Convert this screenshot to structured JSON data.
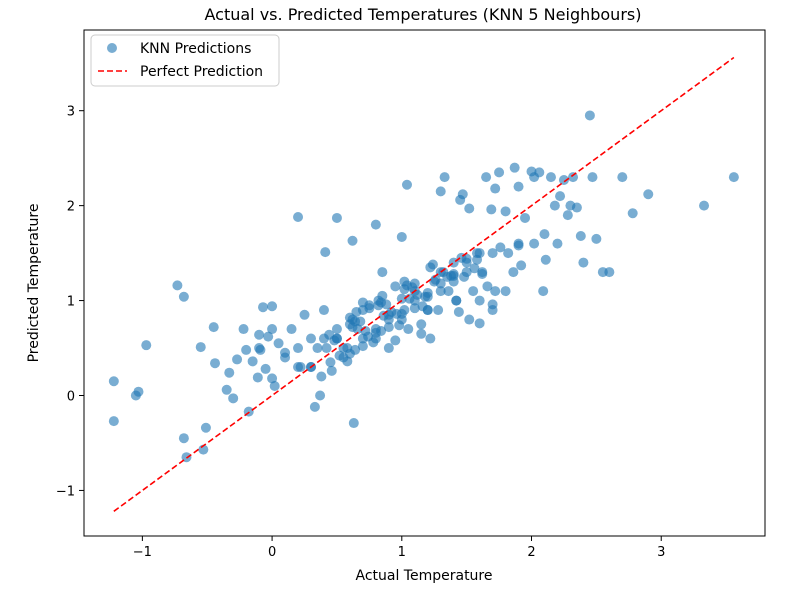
{
  "chart_data": {
    "type": "scatter",
    "title": "Actual vs. Predicted Temperatures (KNN 5 Neighbours)",
    "xlabel": "Actual Temperature",
    "ylabel": "Predicted Temperature",
    "xlim": [
      -1.45,
      3.8
    ],
    "ylim": [
      -1.48,
      3.85
    ],
    "x_ticks": [
      -1,
      0,
      1,
      2,
      3
    ],
    "y_ticks": [
      -1,
      0,
      1,
      2,
      3
    ],
    "x_tick_labels": [
      "−1",
      "0",
      "1",
      "2",
      "3"
    ],
    "y_tick_labels": [
      "−1",
      "0",
      "1",
      "2",
      "3"
    ],
    "grid": false,
    "legend_position": "top-left",
    "series": [
      {
        "name": "KNN Predictions",
        "kind": "scatter",
        "color": "#1f77b4",
        "x": [
          -1.22,
          -1.22,
          -1.05,
          -1.03,
          -0.97,
          -0.73,
          -0.68,
          -0.68,
          -0.66,
          -0.55,
          -0.53,
          -0.51,
          -0.45,
          -0.44,
          -0.35,
          -0.33,
          -0.3,
          -0.27,
          -0.22,
          -0.18,
          -0.15,
          -0.11,
          -0.1,
          -0.09,
          -0.07,
          -0.05,
          -0.03,
          0.0,
          0.0,
          0.2,
          0.33,
          0.37,
          0.41,
          0.5,
          0.62,
          0.63,
          0.8,
          0.85,
          1.0,
          1.04,
          1.3,
          1.33,
          1.45,
          1.47,
          1.52,
          1.58,
          1.6,
          1.65,
          1.69,
          1.72,
          1.75,
          1.8,
          1.87,
          1.9,
          1.92,
          1.95,
          2.0,
          2.02,
          2.06,
          2.09,
          2.11,
          2.15,
          2.18,
          2.2,
          2.22,
          2.25,
          2.28,
          2.3,
          2.32,
          2.35,
          2.38,
          2.4,
          2.45,
          2.47,
          2.5,
          2.55,
          2.6,
          2.7,
          2.78,
          2.9,
          3.33,
          3.56,
          0.15,
          0.35,
          0.55,
          0.7,
          0.9,
          1.1,
          1.25,
          1.4,
          1.55,
          1.7,
          0.05,
          0.25,
          0.45,
          0.6,
          0.75,
          0.95,
          1.15,
          1.35,
          0.1,
          0.3,
          0.5,
          0.65,
          0.85,
          1.05,
          1.2,
          1.5,
          -0.2,
          0.0,
          0.2,
          0.4,
          0.58,
          0.8,
          1.0,
          1.2,
          1.4,
          1.6,
          1.8,
          0.7,
          0.8,
          0.9,
          1.0,
          1.1,
          0.6,
          0.75,
          0.95,
          1.15,
          1.3,
          0.5,
          0.68,
          0.88,
          1.08,
          1.28,
          1.48,
          0.55,
          0.72,
          0.92,
          1.12,
          1.32,
          1.52,
          1.72,
          0.4,
          0.62,
          0.82,
          1.02,
          1.22,
          1.42,
          1.62,
          0.3,
          0.48,
          0.66,
          0.86,
          1.06,
          1.26,
          1.46,
          1.66,
          1.86,
          0.2,
          0.44,
          0.64,
          0.84,
          1.04,
          1.24,
          1.44,
          0.52,
          0.74,
          0.96,
          1.18,
          1.38,
          1.58,
          0.58,
          0.78,
          0.98,
          1.16,
          1.36,
          1.56,
          1.76,
          0.64,
          0.84,
          1.02,
          1.2,
          1.4,
          1.6,
          0.46,
          0.7,
          0.9,
          1.1,
          1.3,
          1.5,
          1.7,
          1.9,
          0.38,
          0.6,
          0.8,
          1.0,
          1.2,
          1.4,
          -0.1,
          0.1,
          0.3,
          0.5,
          0.7,
          0.9,
          1.1,
          1.3,
          1.5,
          1.7,
          1.9,
          2.1,
          0.02,
          0.22,
          0.42,
          0.62,
          0.82,
          1.02,
          1.22,
          1.42,
          1.62,
          1.82,
          2.02
        ],
        "y": [
          0.15,
          -0.27,
          0.0,
          0.04,
          0.53,
          1.16,
          1.04,
          -0.45,
          -0.65,
          0.51,
          -0.57,
          -0.34,
          0.72,
          0.34,
          0.06,
          0.24,
          -0.03,
          0.38,
          0.7,
          -0.17,
          0.36,
          0.19,
          0.64,
          0.48,
          0.93,
          0.28,
          0.62,
          0.94,
          0.18,
          1.88,
          -0.12,
          0.0,
          1.51,
          1.87,
          1.63,
          -0.29,
          1.8,
          1.3,
          1.67,
          2.22,
          2.15,
          2.3,
          2.06,
          2.12,
          1.97,
          1.43,
          1.5,
          2.3,
          1.96,
          2.18,
          2.35,
          1.94,
          2.4,
          2.2,
          1.37,
          1.87,
          2.36,
          2.3,
          2.35,
          1.1,
          1.43,
          2.3,
          2.0,
          1.6,
          2.1,
          2.27,
          1.9,
          2.0,
          2.3,
          1.98,
          1.68,
          1.4,
          2.95,
          2.3,
          1.65,
          1.3,
          1.3,
          2.3,
          1.92,
          2.12,
          2.0,
          2.3,
          0.7,
          0.5,
          0.4,
          0.6,
          0.8,
          1.0,
          1.2,
          1.4,
          1.1,
          0.9,
          0.55,
          0.85,
          0.35,
          0.75,
          0.95,
          1.15,
          0.65,
          1.25,
          0.45,
          0.3,
          0.6,
          0.88,
          1.05,
          0.7,
          0.9,
          1.3,
          0.48,
          0.7,
          0.3,
          0.9,
          0.5,
          0.6,
          0.8,
          0.9,
          1.2,
          1.0,
          1.1,
          0.98,
          0.7,
          0.85,
          1.02,
          1.18,
          0.82,
          0.92,
          0.58,
          0.75,
          1.1,
          0.6,
          0.78,
          0.96,
          1.14,
          0.9,
          1.25,
          0.5,
          0.68,
          0.88,
          1.06,
          1.3,
          0.8,
          1.1,
          0.6,
          0.72,
          0.95,
          1.12,
          1.35,
          1.0,
          1.28,
          0.3,
          0.58,
          0.7,
          0.84,
          1.02,
          1.22,
          1.45,
          1.15,
          1.3,
          0.5,
          0.64,
          0.78,
          0.98,
          1.16,
          1.38,
          0.88,
          0.42,
          0.62,
          0.86,
          1.04,
          1.26,
          1.5,
          0.36,
          0.56,
          0.74,
          0.94,
          1.1,
          1.34,
          1.56,
          0.48,
          0.68,
          0.9,
          1.08,
          1.28,
          0.76,
          0.26,
          0.52,
          0.72,
          0.92,
          1.18,
          1.44,
          0.96,
          1.58,
          0.2,
          0.44,
          0.66,
          0.86,
          1.04,
          1.26,
          0.5,
          0.4,
          0.6,
          0.7,
          0.9,
          0.5,
          1.1,
          1.3,
          1.4,
          1.5,
          1.6,
          1.7,
          0.1,
          0.3,
          0.5,
          0.8,
          1.0,
          1.2,
          0.6,
          1.0,
          1.3,
          1.5,
          1.6
        ]
      },
      {
        "name": "Perfect Prediction",
        "kind": "line",
        "style": "dashed",
        "color": "#ff0000",
        "x": [
          -1.22,
          3.56
        ],
        "y": [
          -1.22,
          3.56
        ]
      }
    ]
  }
}
